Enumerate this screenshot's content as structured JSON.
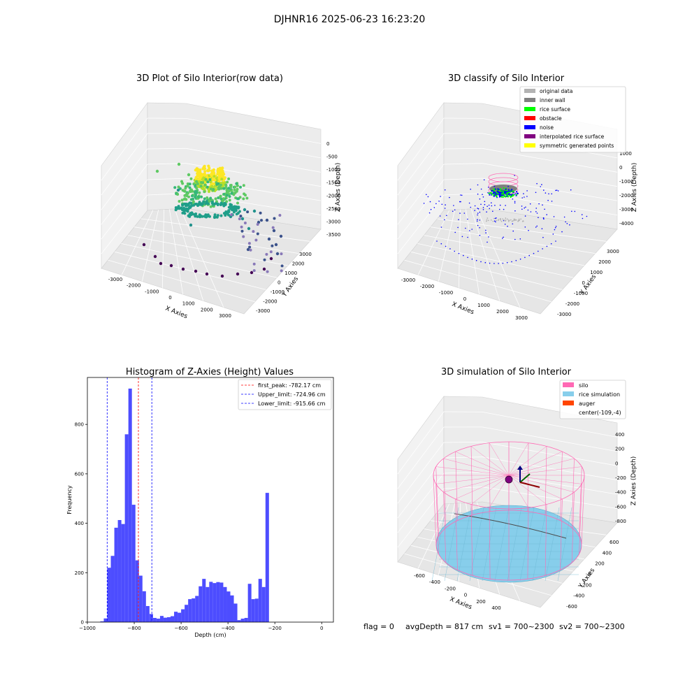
{
  "suptitle": "DJHNR16 2025-06-23 16:23:20",
  "status_line": {
    "flag": "flag = 0",
    "avg_depth": "avgDepth = 817 cm",
    "sv1": "sv1 = 700~2300",
    "sv2": "sv2 = 700~2300"
  },
  "colors": {
    "hist_bar": "#4d4dff",
    "first_peak_line": "#ff0000",
    "limit_lines": "#0000ff",
    "silo": "#ff69b4",
    "rice_simulation": "#87ceeb",
    "auger": "#ff4500",
    "original_data": "#b3b3b3",
    "inner_wall": "#808080",
    "rice_surface": "#00ff00",
    "obstacle": "#ff0000",
    "noise": "#0000ff",
    "interpolated_rice_surface": "#800080",
    "symmetric_generated_points": "#ffff00"
  },
  "chart_data": [
    {
      "type": "scatter",
      "title": "3D Plot of Silo Interior(row data)",
      "xlabel": "X Axies",
      "ylabel": "Y Axies",
      "zlabel": "Z Axies (Depth)",
      "x_ticks": [
        "-3000",
        "-2000",
        "-1000",
        "0",
        "1000",
        "2000",
        "3000"
      ],
      "y_ticks": [
        "3000",
        "2000",
        "1000",
        "0",
        "-1000",
        "-2000",
        "-3000"
      ],
      "z_ticks": [
        "0",
        "-500",
        "-1000",
        "-1500",
        "-2000",
        "-2500",
        "-3000",
        "-3500"
      ],
      "colormap": "viridis"
    },
    {
      "type": "scatter",
      "title": "3D classify of Silo Interior",
      "xlabel": "X Axies",
      "ylabel": "Y Axies",
      "zlabel": "Z Axies (Depth)",
      "x_ticks": [
        "-3000",
        "-2000",
        "-1000",
        "0",
        "1000",
        "2000",
        "3000"
      ],
      "y_ticks": [
        "3000",
        "2000",
        "1000",
        "0",
        "-1000",
        "-2000",
        "-3000"
      ],
      "z_ticks": [
        "1000",
        "0",
        "-1000",
        "-2000",
        "-3000",
        "-4000"
      ],
      "legend_position": "top-right",
      "legend": [
        {
          "label": "original data",
          "color": "#b3b3b3"
        },
        {
          "label": "inner wall",
          "color": "#808080"
        },
        {
          "label": "rice surface",
          "color": "#00ff00"
        },
        {
          "label": "obstacle",
          "color": "#ff0000"
        },
        {
          "label": "noise",
          "color": "#0000ff"
        },
        {
          "label": "interpolated rice surface",
          "color": "#800080"
        },
        {
          "label": "symmetric generated points",
          "color": "#ffff00"
        }
      ]
    },
    {
      "type": "bar",
      "title": "Histogram of Z-Axies (Height) Values",
      "xlabel": "Depth (cm)",
      "ylabel": "Frequency",
      "xlim": [
        -1000,
        50
      ],
      "ylim": [
        0,
        990
      ],
      "x_ticks": [
        -1000,
        -800,
        -600,
        -400,
        -200,
        0
      ],
      "y_ticks": [
        0,
        200,
        400,
        600,
        800
      ],
      "bin_start": -945,
      "bin_width": 15,
      "values": [
        3,
        15,
        220,
        268,
        382,
        413,
        397,
        760,
        945,
        475,
        250,
        188,
        125,
        65,
        33,
        17,
        14,
        25,
        18,
        20,
        24,
        42,
        38,
        52,
        70,
        93,
        96,
        106,
        145,
        175,
        142,
        163,
        158,
        162,
        160,
        142,
        124,
        108,
        75,
        8,
        14,
        17,
        155,
        93,
        95,
        175,
        142,
        523
      ],
      "lines": [
        {
          "label": "first_peak: -782.17 cm",
          "value": -782.17,
          "color": "#ff0000"
        },
        {
          "label": "Upper_limit: -724.96 cm",
          "value": -724.96,
          "color": "#0000ff"
        },
        {
          "label": "Lower_limit: -915.66 cm",
          "value": -915.66,
          "color": "#0000ff"
        }
      ],
      "legend_position": "top-right"
    },
    {
      "type": "area",
      "title": "3D simulation of Silo Interior",
      "xlabel": "X Axies",
      "ylabel": "Y Axies",
      "zlabel": "Z Axies (Depth)",
      "x_ticks": [
        "-600",
        "-400",
        "-200",
        "0",
        "200",
        "400"
      ],
      "y_ticks": [
        "600",
        "400",
        "200",
        "0",
        "-200",
        "-400",
        "-600"
      ],
      "z_ticks": [
        "400",
        "200",
        "0",
        "-200",
        "-400",
        "-600",
        "-800"
      ],
      "legend_position": "top-right",
      "legend": [
        {
          "label": "silo",
          "color": "#ff69b4"
        },
        {
          "label": "rice simulation",
          "color": "#87ceeb"
        },
        {
          "label": "auger",
          "color": "#ff4500"
        },
        {
          "label": "center(-109,-4)",
          "color": ""
        }
      ]
    }
  ]
}
